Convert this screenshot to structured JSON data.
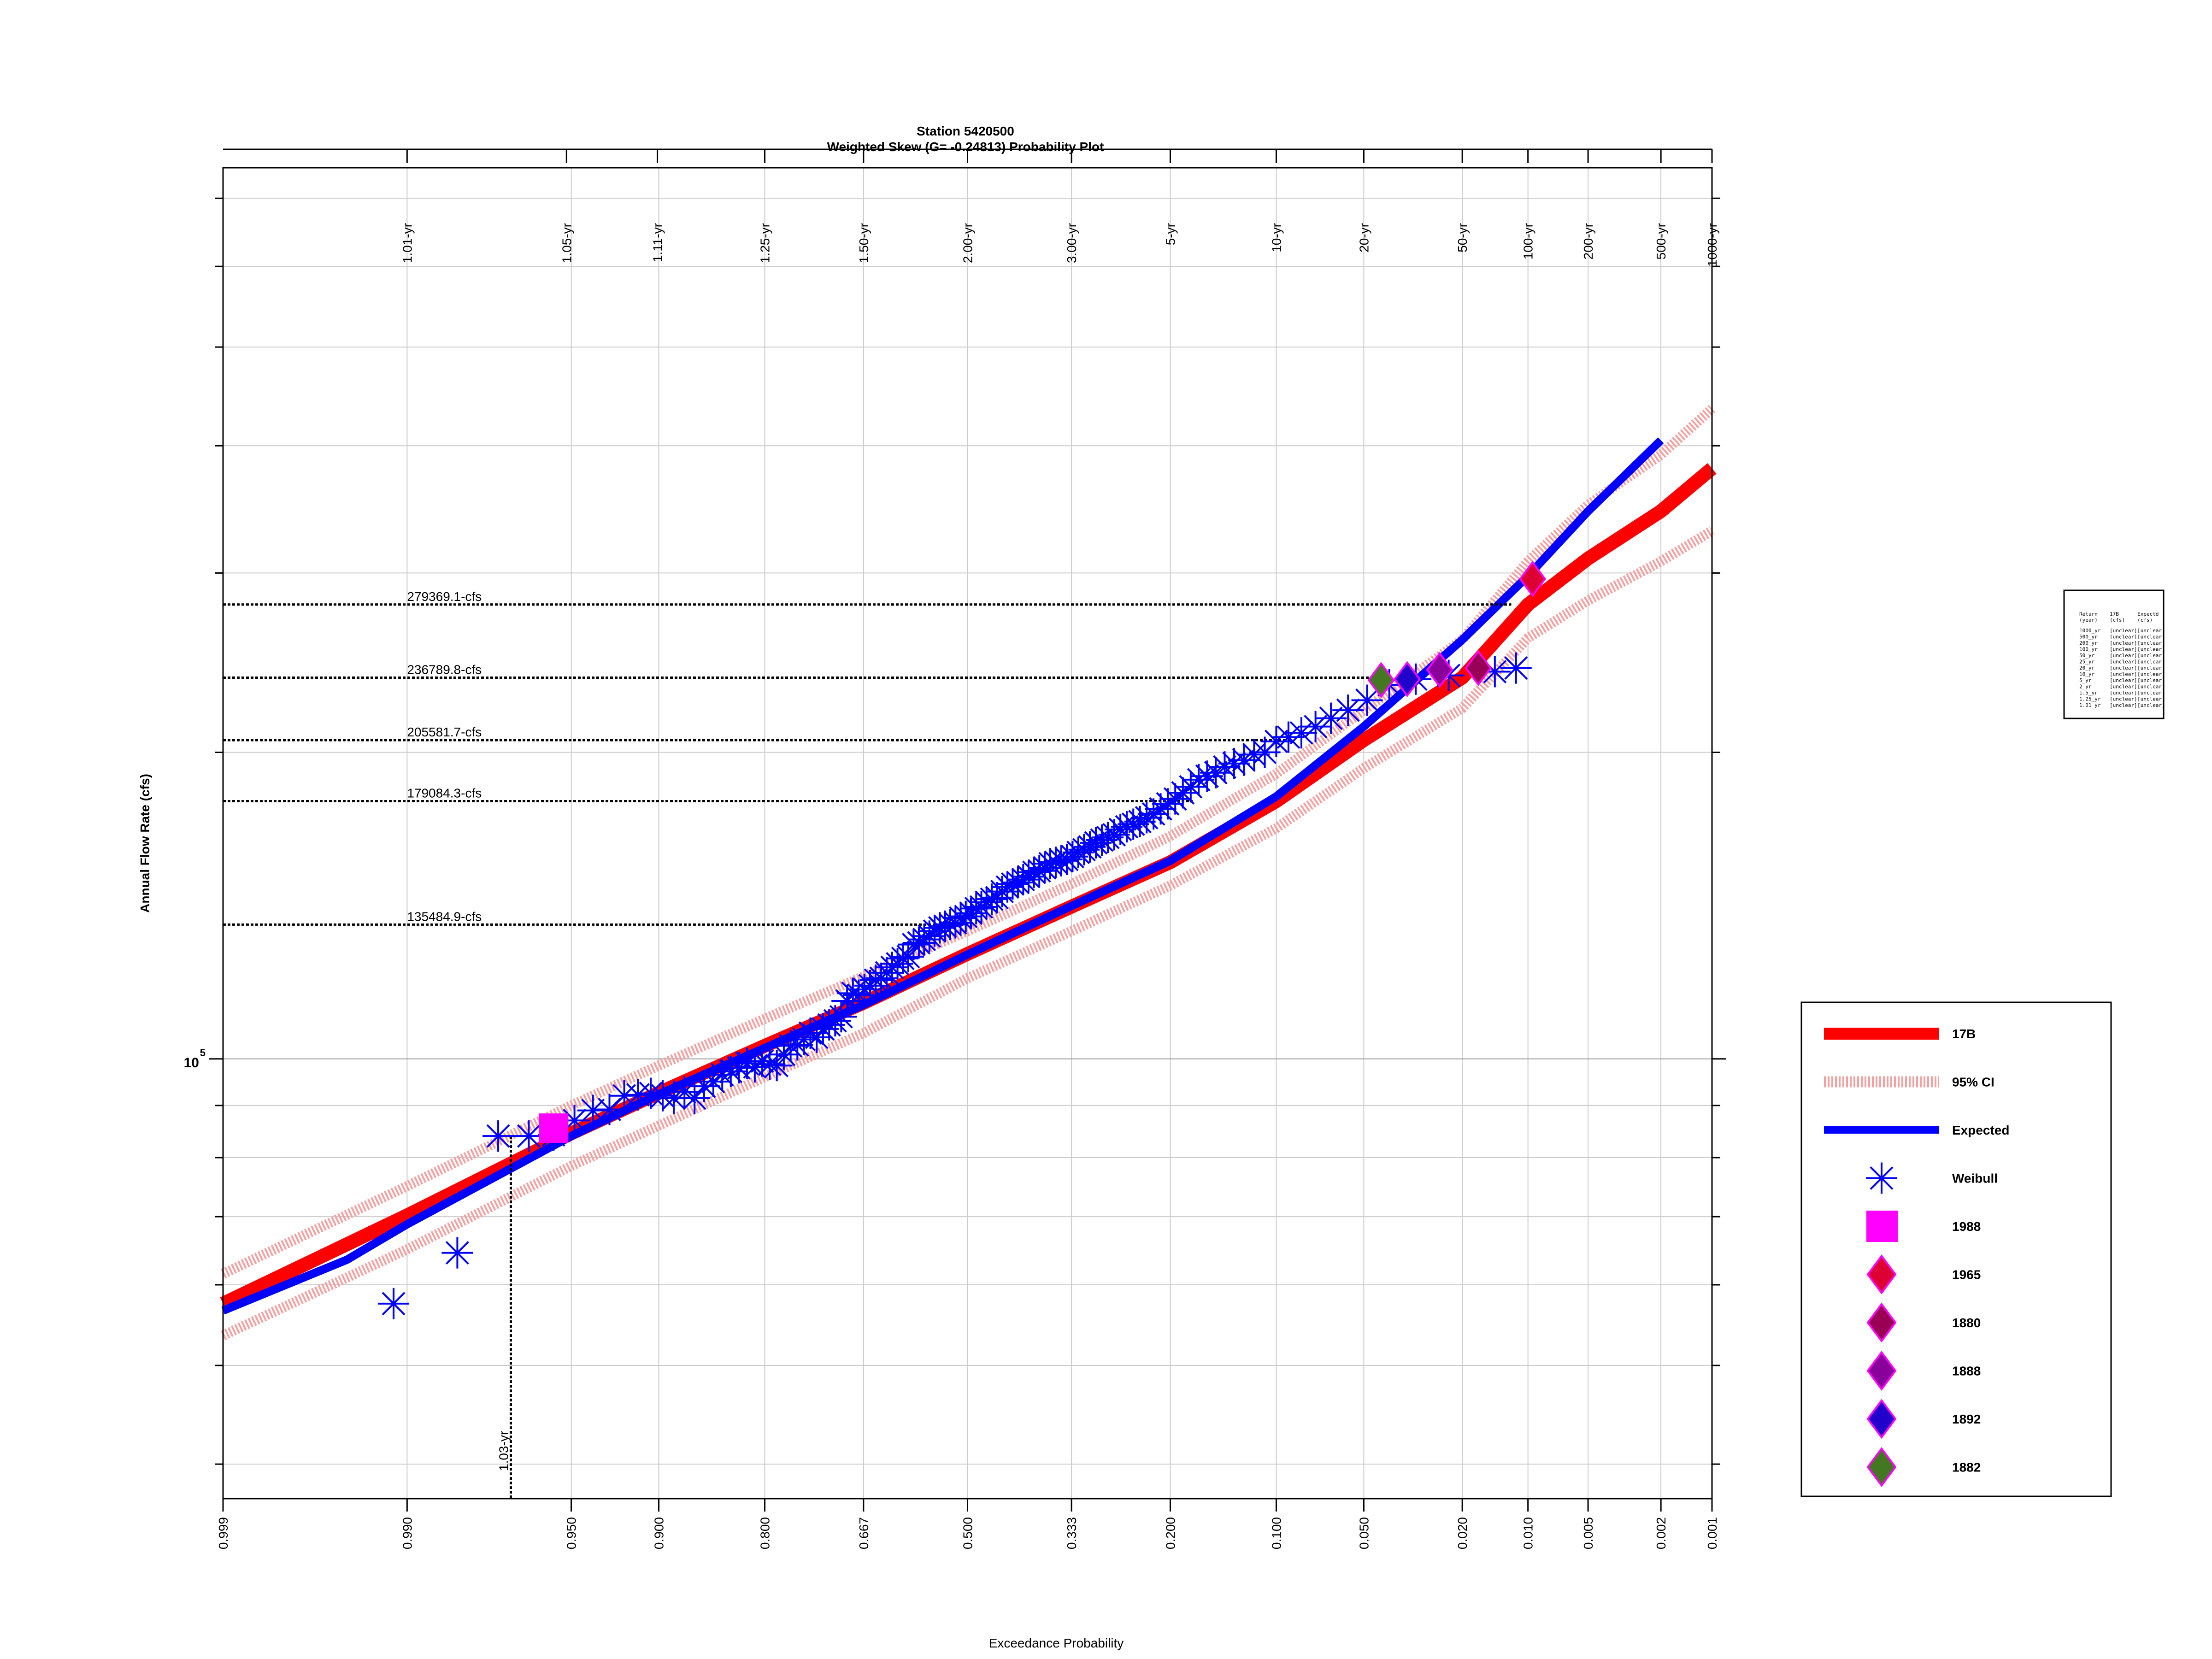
{
  "chart_data": {
    "type": "scatter",
    "title": "Station 5420500",
    "subtitle": "Weighted Skew (G= -0.24813) Probability Plot",
    "xlabel": "Exceedance Probability",
    "ylabel": "Annual Flow Rate (cfs)",
    "y_scale": "log",
    "y_tick_label": {
      "base": "10",
      "exponent": "5"
    },
    "x_scale": "normal-probability",
    "xlim": [
      0.999,
      0.001
    ],
    "ylim": [
      37000,
      750000
    ],
    "x_ticks": [
      "0.999",
      "0.990",
      "0.950",
      "0.900",
      "0.800",
      "0.667",
      "0.500",
      "0.333",
      "0.200",
      "0.100",
      "0.050",
      "0.020",
      "0.010",
      "0.005",
      "0.002",
      "0.001"
    ],
    "x_tick_values": [
      0.999,
      0.99,
      0.95,
      0.9,
      0.8,
      0.667,
      0.5,
      0.333,
      0.2,
      0.1,
      0.05,
      0.02,
      0.01,
      0.005,
      0.002,
      0.001
    ],
    "return_periods": [
      {
        "label": "1.01-yr",
        "p": 0.99
      },
      {
        "label": "1.05-yr",
        "p": 0.952
      },
      {
        "label": "1.11-yr",
        "p": 0.901
      },
      {
        "label": "1.25-yr",
        "p": 0.8
      },
      {
        "label": "1.50-yr",
        "p": 0.667
      },
      {
        "label": "2.00-yr",
        "p": 0.5
      },
      {
        "label": "3.00-yr",
        "p": 0.333
      },
      {
        "label": "5-yr",
        "p": 0.2
      },
      {
        "label": "10-yr",
        "p": 0.1
      },
      {
        "label": "20-yr",
        "p": 0.05
      },
      {
        "label": "50-yr",
        "p": 0.02
      },
      {
        "label": "100-yr",
        "p": 0.01
      },
      {
        "label": "200-yr",
        "p": 0.005
      },
      {
        "label": "500-yr",
        "p": 0.002
      },
      {
        "label": "1000-yr",
        "p": 0.001
      }
    ],
    "reference_lines": [
      {
        "label": "279369.1-cfs",
        "value": 279369.1,
        "p": 0.012
      },
      {
        "label": "236789.8-cfs",
        "value": 236789.8,
        "p": 0.04
      },
      {
        "label": "205581.7-cfs",
        "value": 205581.7,
        "p": 0.09
      },
      {
        "label": "179084.3-cfs",
        "value": 179084.3,
        "p": 0.175
      },
      {
        "label": "135484.9-cfs",
        "value": 135484.9,
        "p": 0.5
      }
    ],
    "vertical_reference": {
      "label": "1.03-yr",
      "p": 0.971,
      "value": 84000
    },
    "series": [
      {
        "name": "17B",
        "color": "#ff0000",
        "kind": "line",
        "x": [
          0.999,
          0.99,
          0.95,
          0.9,
          0.8,
          0.667,
          0.5,
          0.333,
          0.2,
          0.1,
          0.05,
          0.02,
          0.01,
          0.005,
          0.002,
          0.001
        ],
        "y": [
          57500,
          70200,
          84500,
          92600,
          103000,
          113500,
          126800,
          141100,
          156000,
          179100,
          205600,
          236800,
          279400,
          310000,
          345000,
          380000
        ]
      },
      {
        "name": "95% CI",
        "color": "#f5a0a0",
        "kind": "band",
        "x": [
          0.999,
          0.99,
          0.95,
          0.9,
          0.8,
          0.667,
          0.5,
          0.333,
          0.2,
          0.1,
          0.05,
          0.02,
          0.01,
          0.005,
          0.002,
          0.001
        ],
        "upper": [
          61500,
          75000,
          90000,
          98500,
          109500,
          120500,
          133500,
          148500,
          165500,
          190500,
          220000,
          258000,
          308000,
          350000,
          392000,
          435000
        ],
        "lower": [
          53500,
          65000,
          78500,
          86000,
          96000,
          106000,
          120000,
          133500,
          148000,
          168500,
          193000,
          221000,
          259000,
          282000,
          308000,
          330000
        ]
      },
      {
        "name": "Expected",
        "color": "#0000ff",
        "kind": "line",
        "x": [
          0.999,
          0.995,
          0.99,
          0.95,
          0.9,
          0.8,
          0.667,
          0.5,
          0.333,
          0.2,
          0.1,
          0.05,
          0.02,
          0.01,
          0.005,
          0.002
        ],
        "y": [
          56600,
          63500,
          68800,
          84000,
          92300,
          102500,
          113000,
          126600,
          141300,
          156500,
          181000,
          212000,
          258000,
          298000,
          345000,
          405000
        ]
      },
      {
        "name": "Weibull",
        "color": "#0000ff",
        "kind": "points",
        "x": [
          0.9914,
          0.9829,
          0.9743,
          0.9657,
          0.9571,
          0.9486,
          0.94,
          0.9314,
          0.9229,
          0.9143,
          0.9057,
          0.8971,
          0.8886,
          0.88,
          0.8714,
          0.8629,
          0.8543,
          0.8457,
          0.8371,
          0.8286,
          0.82,
          0.8114,
          0.8029,
          0.7943,
          0.7857,
          0.7771,
          0.7686,
          0.76,
          0.7514,
          0.7429,
          0.7343,
          0.7257,
          0.7171,
          0.7086,
          0.7,
          0.6914,
          0.6829,
          0.6743,
          0.6657,
          0.6571,
          0.6486,
          0.64,
          0.6314,
          0.6229,
          0.6143,
          0.6057,
          0.5971,
          0.5886,
          0.58,
          0.5714,
          0.5629,
          0.5543,
          0.5457,
          0.5371,
          0.5286,
          0.52,
          0.5114,
          0.5029,
          0.4943,
          0.4857,
          0.4771,
          0.4686,
          0.46,
          0.4514,
          0.4429,
          0.4343,
          0.4257,
          0.4171,
          0.4086,
          0.4,
          0.3914,
          0.3829,
          0.3743,
          0.3657,
          0.3571,
          0.3486,
          0.34,
          0.3314,
          0.3229,
          0.3143,
          0.3057,
          0.2971,
          0.2886,
          0.28,
          0.2714,
          0.2629,
          0.2543,
          0.2457,
          0.2371,
          0.2286,
          0.22,
          0.2114,
          0.2029,
          0.1943,
          0.1857,
          0.1771,
          0.1686,
          0.16,
          0.1514,
          0.1429,
          0.1343,
          0.1257,
          0.1171,
          0.1086,
          0.1,
          0.0914,
          0.0829,
          0.0743,
          0.0657,
          0.0571,
          0.0486,
          0.04,
          0.0314,
          0.0229,
          0.0143,
          0.0114
        ],
        "y": [
          57500,
          64500,
          84000,
          84000,
          84200,
          87000,
          89000,
          89200,
          92000,
          92200,
          92500,
          92000,
          91500,
          92800,
          91500,
          94000,
          95000,
          96500,
          97200,
          98000,
          99000,
          98200,
          99500,
          98800,
          98500,
          101000,
          103000,
          103200,
          104500,
          106000,
          105000,
          107000,
          108000,
          109000,
          110000,
          114000,
          116000,
          115500,
          117000,
          118000,
          119500,
          120000,
          121500,
          123000,
          124000,
          125500,
          126000,
          129500,
          130000,
          131000,
          132000,
          133500,
          134500,
          135000,
          135500,
          136000,
          137500,
          138000,
          139000,
          140500,
          141000,
          142500,
          143500,
          144000,
          146000,
          147500,
          148500,
          149000,
          150000,
          151000,
          152500,
          153000,
          154000,
          155500,
          156000,
          156500,
          157000,
          158000,
          159500,
          160500,
          161500,
          163000,
          164000,
          165000,
          166000,
          168000,
          169000,
          170000,
          171000,
          172500,
          174000,
          176000,
          178000,
          180000,
          182500,
          185000,
          188000,
          189500,
          191000,
          193500,
          195000,
          196500,
          199000,
          200000,
          205000,
          207000,
          209000,
          212000,
          216000,
          220000,
          225000,
          233000,
          236000,
          238000,
          240000,
          242000
        ]
      },
      {
        "name": "1988",
        "color": "#ff00ff",
        "kind": "square",
        "x": [
          0.9571
        ],
        "y": [
          85500
        ]
      },
      {
        "name": "1965",
        "color": "#dd0033",
        "kind": "diamond",
        "x": [
          0.0095
        ],
        "y": [
          296000
        ]
      },
      {
        "name": "1880",
        "color": "#990055",
        "kind": "diamond",
        "x": [
          0.017
        ],
        "y": [
          242000
        ]
      },
      {
        "name": "1888",
        "color": "#880099",
        "kind": "diamond",
        "x": [
          0.025
        ],
        "y": [
          241000
        ]
      },
      {
        "name": "1892",
        "color": "#2200cc",
        "kind": "diamond",
        "x": [
          0.034
        ],
        "y": [
          236000
        ]
      },
      {
        "name": "1882",
        "color": "#447722",
        "kind": "diamond",
        "x": [
          0.043
        ],
        "y": [
          235500
        ]
      }
    ],
    "grid": true,
    "legend_placement": "right"
  },
  "table_inset": {
    "header": [
      "Return",
      "17B",
      "Expectd"
    ],
    "subheader": [
      "(year)",
      "(cfs)",
      "(cfs)"
    ],
    "rows": [
      [
        "1000_yr",
        "[unclear]",
        "[unclear]"
      ],
      [
        "500_yr",
        "[unclear]",
        "[unclear]"
      ],
      [
        "200_yr",
        "[unclear]",
        "[unclear]"
      ],
      [
        "100_yr",
        "[unclear]",
        "[unclear]"
      ],
      [
        "50_yr",
        "[unclear]",
        "[unclear]"
      ],
      [
        "25_yr",
        "[unclear]",
        "[unclear]"
      ],
      [
        "20_yr",
        "[unclear]",
        "[unclear]"
      ],
      [
        "10_yr",
        "[unclear]",
        "[unclear]"
      ],
      [
        "5_yr",
        "[unclear]",
        "[unclear]"
      ],
      [
        "2_yr",
        "[unclear]",
        "[unclear]"
      ],
      [
        "1.5_yr",
        "[unclear]",
        "[unclear]"
      ],
      [
        "1.25_yr",
        "[unclear]",
        "[unclear]"
      ],
      [
        "1.01_yr",
        "[unclear]",
        "[unclear]"
      ]
    ]
  }
}
